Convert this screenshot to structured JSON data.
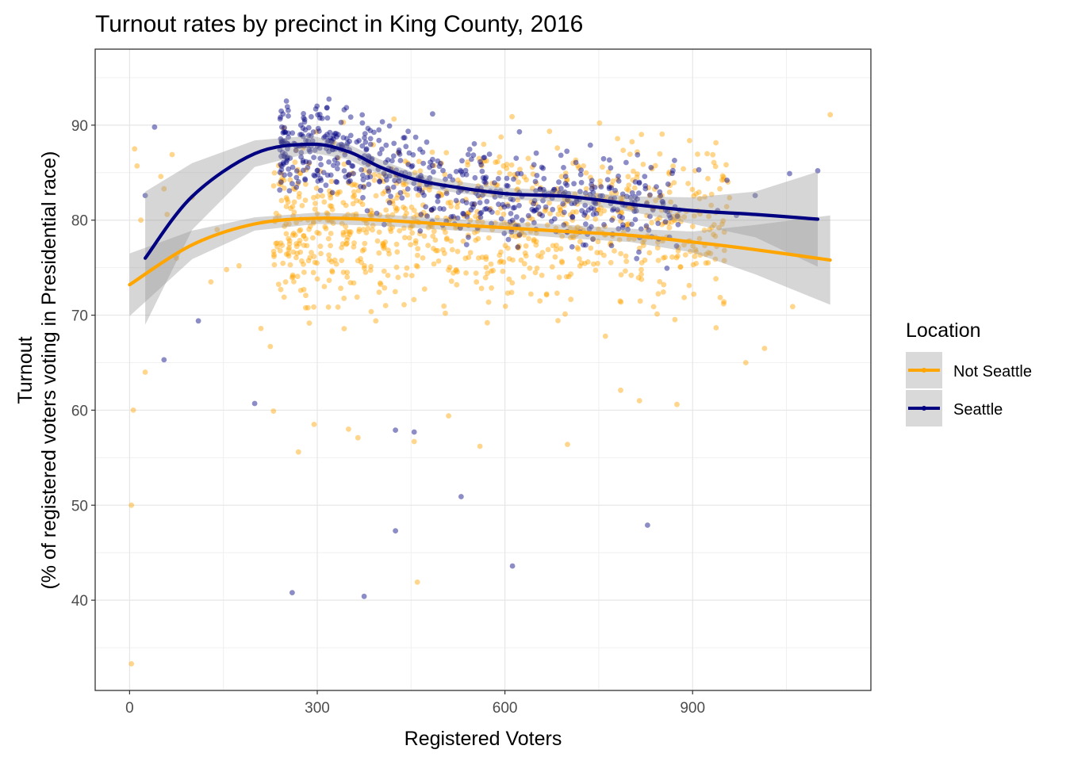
{
  "chart_data": {
    "type": "scatter",
    "title": "Turnout rates by precinct in King County, 2016",
    "xlabel": "Registered Voters",
    "ylabel": "Turnout",
    "ylabel_line2": "(% of registered voters voting in Presidential race)",
    "xlim": [
      -55,
      1185
    ],
    "ylim": [
      30.5,
      98
    ],
    "x_ticks": [
      0,
      300,
      600,
      900
    ],
    "y_ticks": [
      40,
      50,
      60,
      70,
      80,
      90
    ],
    "grid": true,
    "legend": {
      "title": "Location",
      "placement": "right",
      "entries": [
        {
          "name": "Not Seattle",
          "color": "#FFA500"
        },
        {
          "name": "Seattle",
          "color": "#000080"
        }
      ]
    },
    "series": [
      {
        "name": "Not Seattle",
        "color": "#FFA500",
        "point_alpha": 0.45,
        "smooth": {
          "x": [
            0,
            100,
            200,
            300,
            400,
            500,
            600,
            700,
            800,
            900,
            1000,
            1120
          ],
          "y": [
            73.2,
            77.4,
            79.6,
            80.2,
            80,
            79.6,
            79.2,
            78.8,
            78.4,
            77.7,
            76.9,
            75.8
          ],
          "ci_upper": [
            76.5,
            78.9,
            80.3,
            80.8,
            80.6,
            80.2,
            79.8,
            79.5,
            79.1,
            78.8,
            79.5,
            80.5
          ],
          "ci_lower": [
            69.9,
            75.9,
            78.9,
            79.6,
            79.4,
            79,
            78.6,
            78.1,
            77.7,
            76.6,
            74.3,
            71.1
          ]
        },
        "cluster": {
          "x_range": [
            230,
            960
          ],
          "y_mean": 79.5,
          "y_sd": 6.5,
          "count": 900
        },
        "points": [
          {
            "x": 3,
            "y": 50
          },
          {
            "x": 3,
            "y": 33.3
          },
          {
            "x": 6,
            "y": 60
          },
          {
            "x": 8,
            "y": 87.5
          },
          {
            "x": 12,
            "y": 85.7
          },
          {
            "x": 18,
            "y": 80
          },
          {
            "x": 25,
            "y": 64
          },
          {
            "x": 50,
            "y": 84.6
          },
          {
            "x": 55,
            "y": 83.3
          },
          {
            "x": 60,
            "y": 80.6
          },
          {
            "x": 68,
            "y": 86.9
          },
          {
            "x": 75,
            "y": 76
          },
          {
            "x": 100,
            "y": 82.4
          },
          {
            "x": 140,
            "y": 79
          },
          {
            "x": 130,
            "y": 73.5
          },
          {
            "x": 155,
            "y": 74.8
          },
          {
            "x": 175,
            "y": 75.2
          },
          {
            "x": 210,
            "y": 68.6
          },
          {
            "x": 225,
            "y": 66.7
          },
          {
            "x": 230,
            "y": 59.9
          },
          {
            "x": 270,
            "y": 55.6
          },
          {
            "x": 295,
            "y": 58.5
          },
          {
            "x": 350,
            "y": 58
          },
          {
            "x": 365,
            "y": 57.1
          },
          {
            "x": 455,
            "y": 56.7
          },
          {
            "x": 460,
            "y": 41.9
          },
          {
            "x": 510,
            "y": 59.4
          },
          {
            "x": 560,
            "y": 56.2
          },
          {
            "x": 700,
            "y": 56.4
          },
          {
            "x": 785,
            "y": 62.1
          },
          {
            "x": 815,
            "y": 61
          },
          {
            "x": 875,
            "y": 60.6
          },
          {
            "x": 985,
            "y": 65
          },
          {
            "x": 1015,
            "y": 66.5
          },
          {
            "x": 1060,
            "y": 70.9
          },
          {
            "x": 1120,
            "y": 91.1
          }
        ]
      },
      {
        "name": "Seattle",
        "color": "#000080",
        "point_alpha": 0.45,
        "smooth": {
          "x": [
            25,
            100,
            200,
            290,
            350,
            400,
            450,
            500,
            600,
            700,
            800,
            900,
            1000,
            1100
          ],
          "y": [
            76,
            82.5,
            87,
            88,
            87.2,
            85.6,
            84.4,
            83.7,
            82.8,
            82.5,
            81.7,
            81,
            80.6,
            80.1
          ],
          "ci_upper": [
            83,
            86,
            88.4,
            88.9,
            88,
            86.4,
            85.1,
            84.3,
            83.4,
            83.1,
            82.5,
            82.4,
            83,
            85.1
          ],
          "ci_lower": [
            69,
            79,
            85.6,
            87.1,
            86.4,
            84.8,
            83.7,
            83.1,
            82.2,
            81.9,
            80.9,
            79.6,
            78.2,
            75.1
          ]
        },
        "cluster": {
          "x_range": [
            240,
            880
          ],
          "y_mean": 86,
          "y_sd": 4.5,
          "count": 620
        },
        "points": [
          {
            "x": 25,
            "y": 82.6
          },
          {
            "x": 40,
            "y": 89.8
          },
          {
            "x": 55,
            "y": 65.3
          },
          {
            "x": 110,
            "y": 69.4
          },
          {
            "x": 200,
            "y": 60.7
          },
          {
            "x": 260,
            "y": 40.8
          },
          {
            "x": 375,
            "y": 40.4
          },
          {
            "x": 425,
            "y": 47.3
          },
          {
            "x": 425,
            "y": 57.9
          },
          {
            "x": 455,
            "y": 57.7
          },
          {
            "x": 530,
            "y": 50.9
          },
          {
            "x": 612,
            "y": 43.6
          },
          {
            "x": 828,
            "y": 47.9
          },
          {
            "x": 1000,
            "y": 82.6
          },
          {
            "x": 1055,
            "y": 84.9
          },
          {
            "x": 1100,
            "y": 85.2
          },
          {
            "x": 955,
            "y": 84.2
          },
          {
            "x": 940,
            "y": 81
          },
          {
            "x": 970,
            "y": 80.5
          },
          {
            "x": 910,
            "y": 85.3
          }
        ]
      }
    ]
  }
}
